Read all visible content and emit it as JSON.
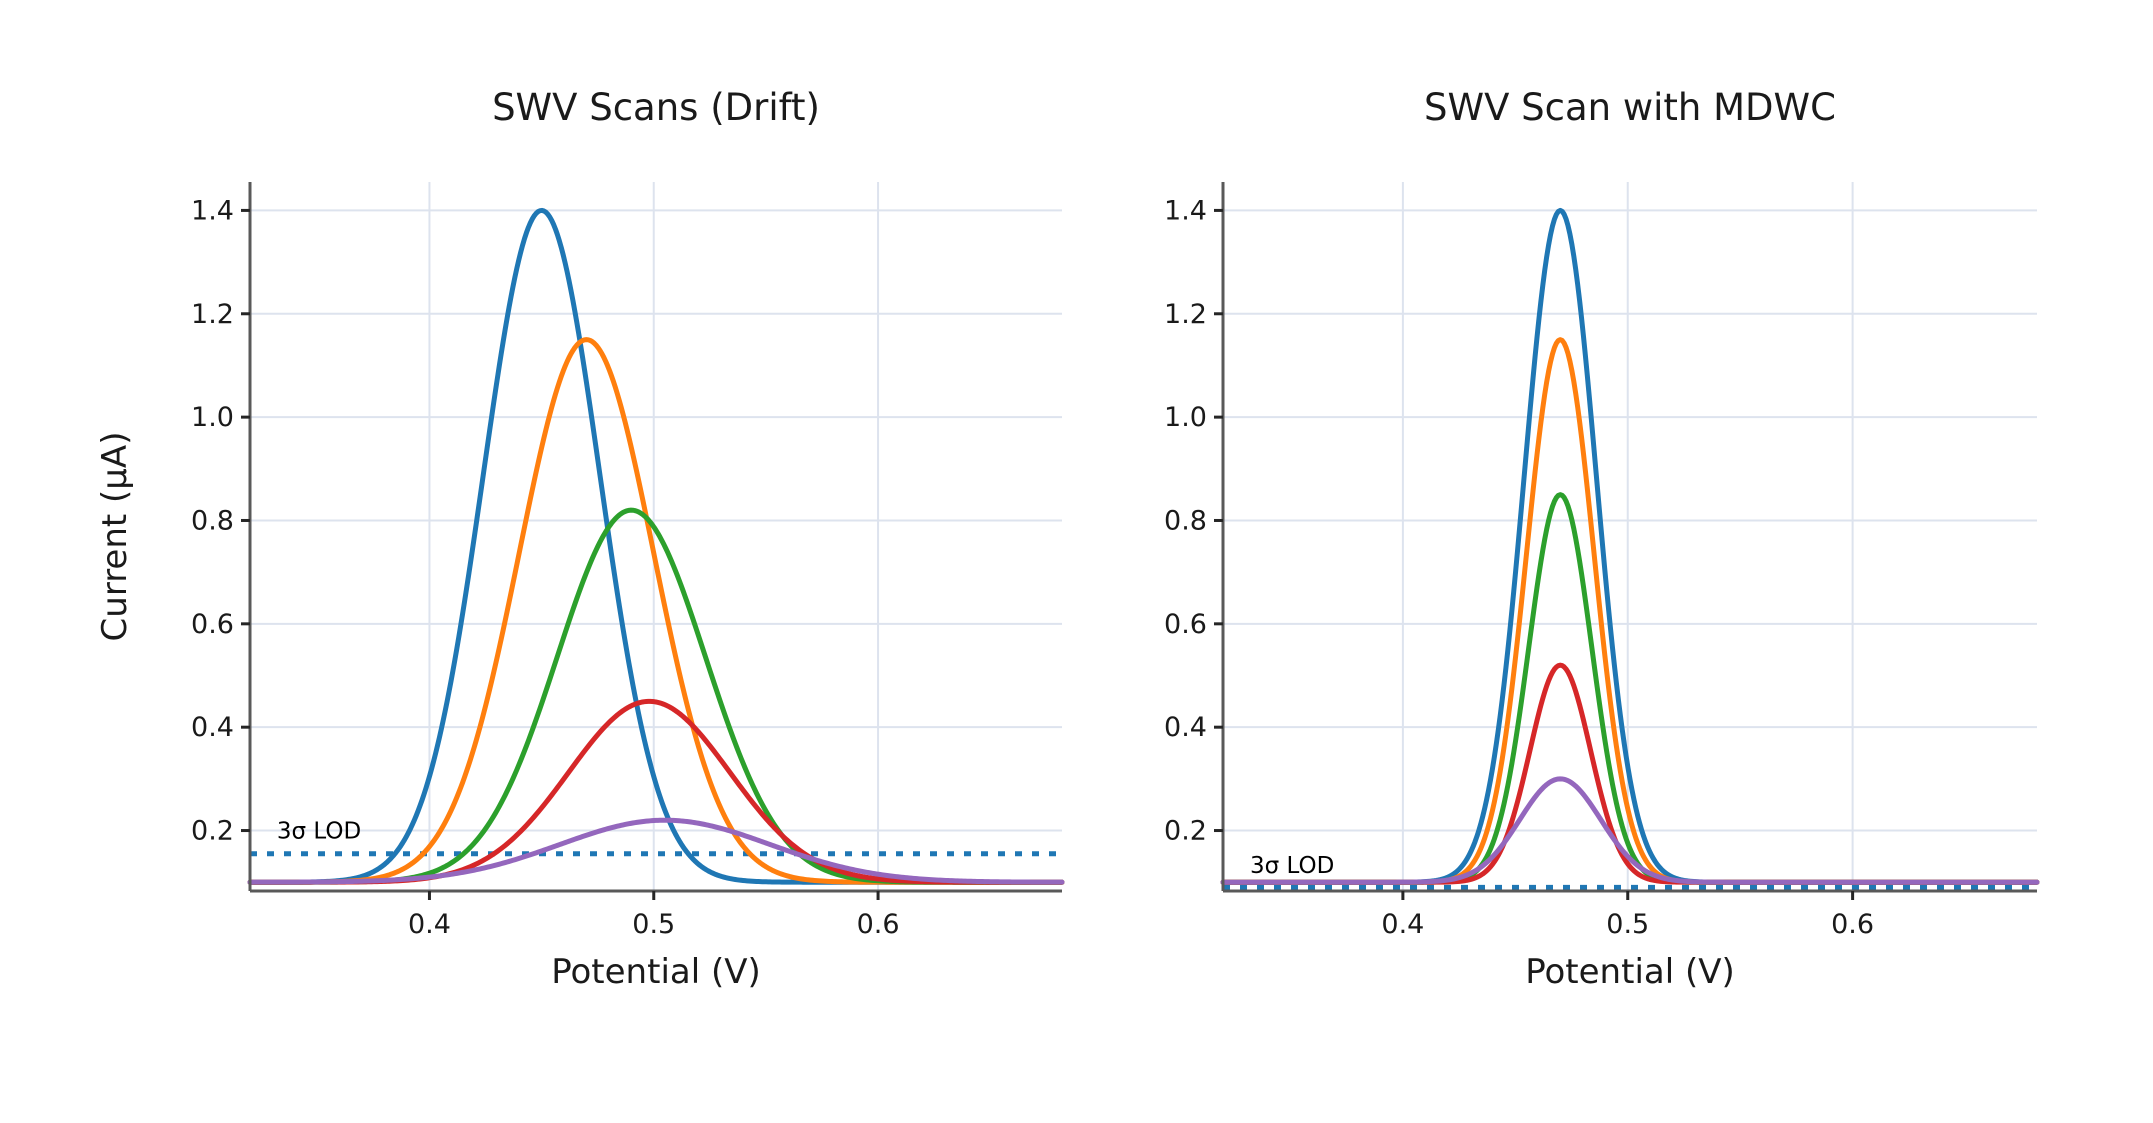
{
  "figure": {
    "background": "#ffffff",
    "grid_color": "#dde3ee",
    "spine_color": "#595959",
    "tick_color": "#262626",
    "text_color": "#1a1a1a"
  },
  "chart_data": [
    {
      "type": "line",
      "title": "SWV Scans (Drift)",
      "xlabel": "Potential (V)",
      "ylabel": "Current (µA)",
      "xlim": [
        0.32,
        0.682
      ],
      "ylim": [
        0.083,
        1.455
      ],
      "xticks": [
        0.4,
        0.5,
        0.6
      ],
      "yticks": [
        0.2,
        0.4,
        0.6,
        0.8,
        1.0,
        1.2,
        1.4
      ],
      "grid": true,
      "legend": "none",
      "baseline_uA": 0.1,
      "curve_model": "gaussian_peak_plus_baseline",
      "series": [
        {
          "name": "scan-1",
          "color": "#1f77b4",
          "peak_V": 0.45,
          "peak_uA": 1.4,
          "sigma_V": 0.026
        },
        {
          "name": "scan-2",
          "color": "#ff7f0e",
          "peak_V": 0.47,
          "peak_uA": 1.15,
          "sigma_V": 0.03
        },
        {
          "name": "scan-3",
          "color": "#2ca02c",
          "peak_V": 0.49,
          "peak_uA": 0.82,
          "sigma_V": 0.033
        },
        {
          "name": "scan-4",
          "color": "#d62728",
          "peak_V": 0.498,
          "peak_uA": 0.45,
          "sigma_V": 0.036
        },
        {
          "name": "scan-5",
          "color": "#9467bd",
          "peak_V": 0.505,
          "peak_uA": 0.22,
          "sigma_V": 0.047
        }
      ],
      "lod_line": {
        "label": "3σ LOD",
        "value_uA": 0.155,
        "color": "#1f77b4",
        "style": "dotted",
        "label_x_V": 0.332,
        "label_y_uA": 0.185
      }
    },
    {
      "type": "line",
      "title": "SWV Scan with MDWC",
      "xlabel": "Potential (V)",
      "ylabel": "",
      "xlim": [
        0.32,
        0.682
      ],
      "ylim": [
        0.083,
        1.455
      ],
      "xticks": [
        0.4,
        0.5,
        0.6
      ],
      "yticks": [
        0.2,
        0.4,
        0.6,
        0.8,
        1.0,
        1.2,
        1.4
      ],
      "grid": true,
      "legend": "none",
      "baseline_uA": 0.1,
      "curve_model": "gaussian_peak_plus_baseline",
      "series": [
        {
          "name": "scan-1",
          "color": "#1f77b4",
          "peak_V": 0.47,
          "peak_uA": 1.4,
          "sigma_V": 0.016
        },
        {
          "name": "scan-2",
          "color": "#ff7f0e",
          "peak_V": 0.47,
          "peak_uA": 1.15,
          "sigma_V": 0.015
        },
        {
          "name": "scan-3",
          "color": "#2ca02c",
          "peak_V": 0.47,
          "peak_uA": 0.85,
          "sigma_V": 0.014
        },
        {
          "name": "scan-4",
          "color": "#d62728",
          "peak_V": 0.47,
          "peak_uA": 0.52,
          "sigma_V": 0.0135
        },
        {
          "name": "scan-5",
          "color": "#9467bd",
          "peak_V": 0.47,
          "peak_uA": 0.3,
          "sigma_V": 0.018
        }
      ],
      "lod_line": {
        "label": "3σ LOD",
        "value_uA": 0.09,
        "color": "#1f77b4",
        "style": "dotted",
        "label_x_V": 0.332,
        "label_y_uA": 0.118
      }
    }
  ]
}
